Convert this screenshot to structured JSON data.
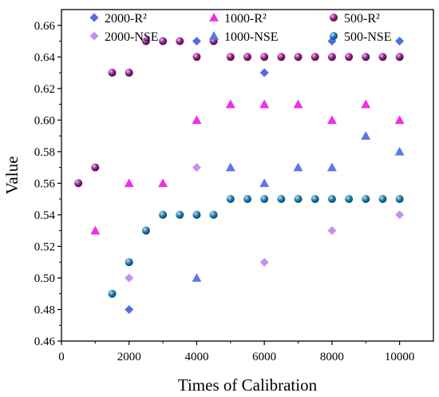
{
  "chart_data": {
    "type": "scatter",
    "title": "",
    "xlabel": "Times of Calibration",
    "ylabel": "Value",
    "xlim": [
      0,
      11000
    ],
    "ylim": [
      0.46,
      0.67
    ],
    "x_ticks": [
      0,
      2000,
      4000,
      6000,
      8000,
      10000
    ],
    "x_tick_labels": [
      "0",
      "2000",
      "4000",
      "6000",
      "8000",
      "10000"
    ],
    "y_ticks": [
      0.46,
      0.48,
      0.5,
      0.52,
      0.54,
      0.56,
      0.58,
      0.6,
      0.62,
      0.64,
      0.66
    ],
    "y_tick_labels": [
      "0.46",
      "0.48",
      "0.50",
      "0.52",
      "0.54",
      "0.56",
      "0.58",
      "0.60",
      "0.62",
      "0.64",
      "0.66"
    ],
    "grid": false,
    "legend_position": "top",
    "series": [
      {
        "name": "2000-R²",
        "marker": "diamond",
        "color": "#4f6fe0",
        "points": [
          [
            2000,
            0.48
          ],
          [
            4000,
            0.65
          ],
          [
            6000,
            0.63
          ],
          [
            8000,
            0.65
          ],
          [
            10000,
            0.65
          ]
        ]
      },
      {
        "name": "2000-NSE",
        "marker": "diamond",
        "color": "#c890ee",
        "points": [
          [
            2000,
            0.5
          ],
          [
            4000,
            0.57
          ],
          [
            6000,
            0.51
          ],
          [
            8000,
            0.53
          ],
          [
            10000,
            0.54
          ]
        ]
      },
      {
        "name": "1000-R²",
        "marker": "triangle",
        "color": "#ee2ee8",
        "points": [
          [
            1000,
            0.53
          ],
          [
            2000,
            0.56
          ],
          [
            3000,
            0.56
          ],
          [
            4000,
            0.6
          ],
          [
            5000,
            0.61
          ],
          [
            6000,
            0.61
          ],
          [
            7000,
            0.61
          ],
          [
            8000,
            0.6
          ],
          [
            9000,
            0.61
          ],
          [
            10000,
            0.6
          ]
        ]
      },
      {
        "name": "1000-NSE",
        "marker": "triangle",
        "color": "#5a78e8",
        "points": [
          [
            4000,
            0.5
          ],
          [
            5000,
            0.57
          ],
          [
            6000,
            0.56
          ],
          [
            7000,
            0.57
          ],
          [
            8000,
            0.57
          ],
          [
            9000,
            0.59
          ],
          [
            10000,
            0.58
          ]
        ]
      },
      {
        "name": "500-R²",
        "marker": "sphere",
        "color": "#8b1a8b",
        "points": [
          [
            500,
            0.56
          ],
          [
            1000,
            0.57
          ],
          [
            1500,
            0.63
          ],
          [
            2000,
            0.63
          ],
          [
            2500,
            0.65
          ],
          [
            3000,
            0.65
          ],
          [
            3500,
            0.65
          ],
          [
            4000,
            0.64
          ],
          [
            4500,
            0.65
          ],
          [
            5000,
            0.64
          ],
          [
            5500,
            0.64
          ],
          [
            6000,
            0.64
          ],
          [
            6500,
            0.64
          ],
          [
            7000,
            0.64
          ],
          [
            7500,
            0.64
          ],
          [
            8000,
            0.64
          ],
          [
            8500,
            0.64
          ],
          [
            9000,
            0.64
          ],
          [
            9500,
            0.64
          ],
          [
            10000,
            0.64
          ]
        ]
      },
      {
        "name": "500-NSE",
        "marker": "sphere",
        "color": "#1a78b0",
        "points": [
          [
            1500,
            0.49
          ],
          [
            2000,
            0.51
          ],
          [
            2500,
            0.53
          ],
          [
            3000,
            0.54
          ],
          [
            3500,
            0.54
          ],
          [
            4000,
            0.54
          ],
          [
            4500,
            0.54
          ],
          [
            5000,
            0.55
          ],
          [
            5500,
            0.55
          ],
          [
            6000,
            0.55
          ],
          [
            6500,
            0.55
          ],
          [
            7000,
            0.55
          ],
          [
            7500,
            0.55
          ],
          [
            8000,
            0.55
          ],
          [
            8500,
            0.55
          ],
          [
            9000,
            0.55
          ],
          [
            9500,
            0.55
          ],
          [
            10000,
            0.55
          ]
        ]
      }
    ]
  }
}
